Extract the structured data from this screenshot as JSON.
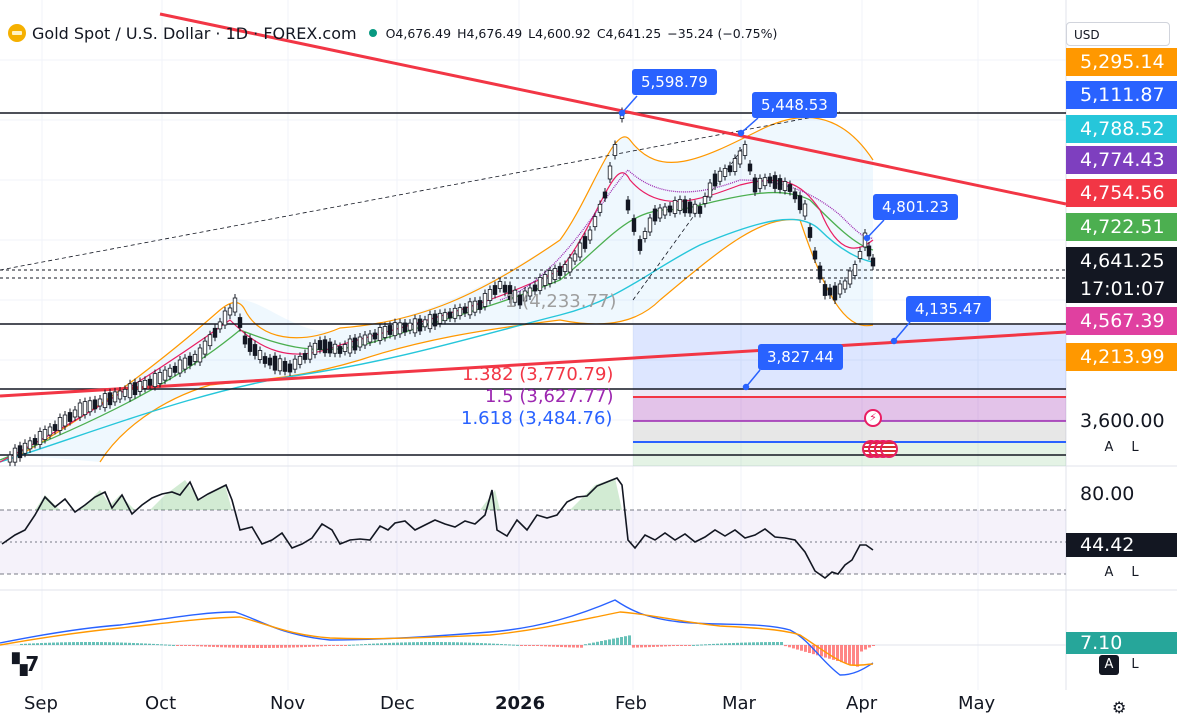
{
  "header": {
    "symbol": "Gold Spot / U.S. Dollar · 1D · FOREX.com",
    "open": "O4,676.49",
    "high": "H4,676.49",
    "low": "L4,600.92",
    "close": "C4,641.25",
    "change": "−35.24 (−0.75%)"
  },
  "currency_button": "USD",
  "price_scale": {
    "tags": [
      {
        "label": "5,295.14",
        "color": "#ff9800"
      },
      {
        "label": "5,111.87",
        "color": "#2962ff"
      },
      {
        "label": "4,788.52",
        "color": "#26c6da"
      },
      {
        "label": "4,774.43",
        "color": "#7e3fbf"
      },
      {
        "label": "4,754.56",
        "color": "#f23645"
      },
      {
        "label": "4,722.51",
        "color": "#4caf50"
      },
      {
        "label": "4,641.25",
        "color": "#131722"
      },
      {
        "label": "17:01:07",
        "color": "#131722"
      },
      {
        "label": "4,567.39",
        "color": "#e040a0"
      },
      {
        "label": "4,213.99",
        "color": "#ff9800"
      }
    ],
    "plain_3600": "3,600.00",
    "rsi_level": "80.00",
    "rsi_value": "44.42",
    "macd_value": "7.10"
  },
  "callouts": {
    "peak": "5,598.79",
    "second_high": "5,448.53",
    "recent_high": "4,801.23",
    "support": "4,135.47",
    "low": "3,827.44"
  },
  "chart_text": {
    "level_233": "1 (4,233.77)"
  },
  "fib_labels": [
    {
      "label": "1.382 (3,770.79)",
      "color": "#f23645"
    },
    {
      "label": "1.5 (3,627.77)",
      "color": "#9c27b0"
    },
    {
      "label": "1.618 (3,484.76)",
      "color": "#2962ff"
    }
  ],
  "x_axis": [
    "Sep",
    "Oct",
    "Nov",
    "Dec",
    "2026",
    "Feb",
    "Mar",
    "Apr",
    "May"
  ],
  "buttons": {
    "auto": "A",
    "log": "L"
  },
  "icons": [
    "gold-logo-icon",
    "market-status-icon",
    "lightning-event-icon",
    "us-flag-icon",
    "tradingview-logo-icon",
    "settings-gear-icon"
  ],
  "colors": {
    "up": "#089981",
    "down": "#131722",
    "trendline": "#f23645",
    "accent": "#2962ff"
  }
}
